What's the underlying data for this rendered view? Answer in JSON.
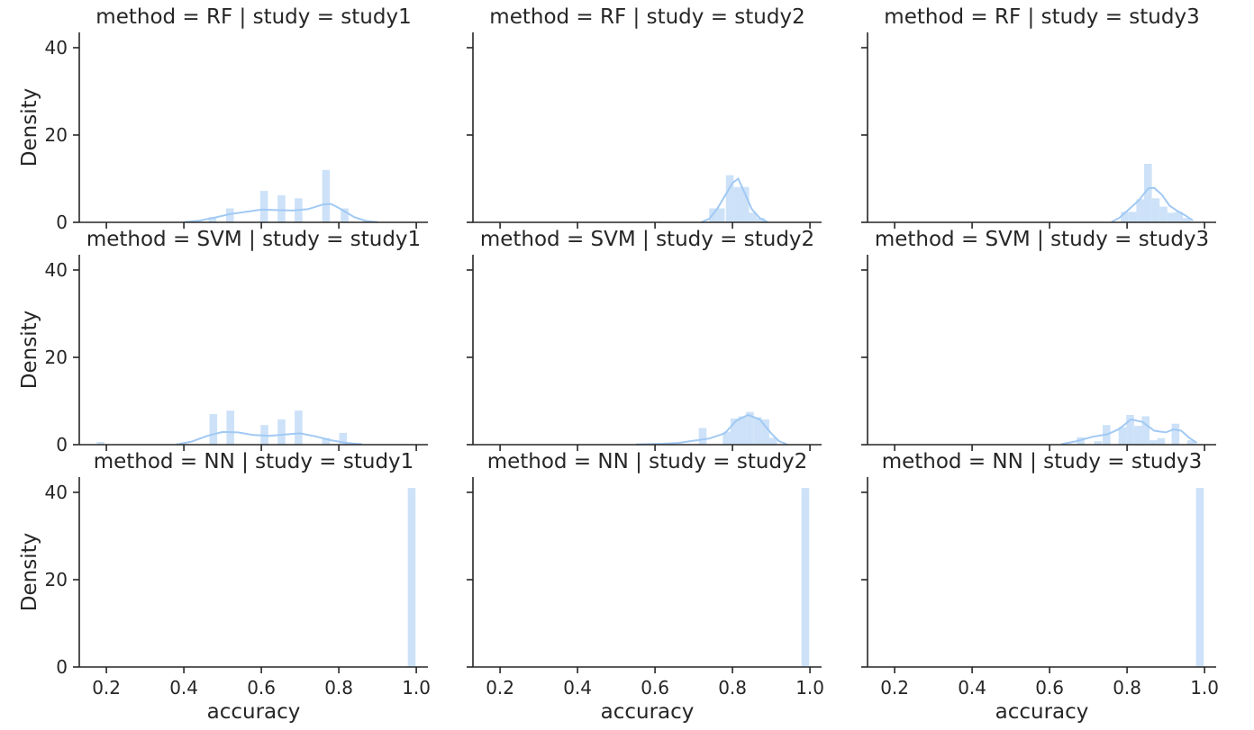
{
  "chart_data": {
    "type": "histogram-facet-grid",
    "row_var": "method",
    "col_var": "study",
    "xlabel": "accuracy",
    "ylabel": "Density",
    "xlim": [
      0.13,
      1.03
    ],
    "ylim": [
      0,
      43.5
    ],
    "x_ticks": [
      0.2,
      0.4,
      0.6,
      0.8,
      1.0
    ],
    "x_tick_labels": [
      "0.2",
      "0.4",
      "0.6",
      "0.8",
      "1.0"
    ],
    "y_ticks": [
      0,
      20,
      40
    ],
    "y_tick_labels": [
      "0",
      "20",
      "40"
    ],
    "bar_color": "#cde2f8",
    "kde_color": "#a1c9f4",
    "panels": [
      {
        "title": "method = RF | study = study1",
        "bars": [
          {
            "x0": 0.464,
            "x1": 0.484,
            "value": 1.2
          },
          {
            "x0": 0.509,
            "x1": 0.529,
            "value": 3.2
          },
          {
            "x0": 0.597,
            "x1": 0.617,
            "value": 7.2
          },
          {
            "x0": 0.642,
            "x1": 0.662,
            "value": 6.2
          },
          {
            "x0": 0.686,
            "x1": 0.706,
            "value": 5.5
          },
          {
            "x0": 0.757,
            "x1": 0.777,
            "value": 12.0
          },
          {
            "x0": 0.805,
            "x1": 0.825,
            "value": 3.2
          }
        ],
        "kde": [
          [
            0.4,
            0.05
          ],
          [
            0.44,
            0.4
          ],
          [
            0.48,
            1.1
          ],
          [
            0.52,
            1.9
          ],
          [
            0.56,
            2.4
          ],
          [
            0.6,
            2.9
          ],
          [
            0.64,
            2.8
          ],
          [
            0.68,
            2.7
          ],
          [
            0.72,
            3.0
          ],
          [
            0.76,
            4.1
          ],
          [
            0.78,
            4.2
          ],
          [
            0.8,
            3.3
          ],
          [
            0.84,
            1.2
          ],
          [
            0.87,
            0.3
          ],
          [
            0.9,
            0.05
          ]
        ]
      },
      {
        "title": "method = RF | study = study2",
        "bars": [
          {
            "x0": 0.74,
            "x1": 0.76,
            "value": 3.2
          },
          {
            "x0": 0.76,
            "x1": 0.78,
            "value": 3.2
          },
          {
            "x0": 0.783,
            "x1": 0.803,
            "value": 10.8
          },
          {
            "x0": 0.803,
            "x1": 0.823,
            "value": 8.1
          },
          {
            "x0": 0.823,
            "x1": 0.843,
            "value": 8.1
          },
          {
            "x0": 0.843,
            "x1": 0.863,
            "value": 2.2
          },
          {
            "x0": 0.863,
            "x1": 0.883,
            "value": 1.0
          }
        ],
        "kde": [
          [
            0.72,
            0.05
          ],
          [
            0.74,
            0.8
          ],
          [
            0.76,
            3.0
          ],
          [
            0.78,
            6.0
          ],
          [
            0.8,
            9.0
          ],
          [
            0.815,
            10.0
          ],
          [
            0.83,
            7.0
          ],
          [
            0.85,
            3.0
          ],
          [
            0.87,
            1.0
          ],
          [
            0.89,
            0.1
          ]
        ]
      },
      {
        "title": "method = RF | study = study3",
        "bars": [
          {
            "x0": 0.784,
            "x1": 0.804,
            "value": 2.4
          },
          {
            "x0": 0.804,
            "x1": 0.824,
            "value": 2.4
          },
          {
            "x0": 0.824,
            "x1": 0.844,
            "value": 5.3
          },
          {
            "x0": 0.844,
            "x1": 0.864,
            "value": 13.4
          },
          {
            "x0": 0.864,
            "x1": 0.884,
            "value": 5.5
          },
          {
            "x0": 0.884,
            "x1": 0.904,
            "value": 3.6
          },
          {
            "x0": 0.904,
            "x1": 0.924,
            "value": 2.2
          },
          {
            "x0": 0.924,
            "x1": 0.944,
            "value": 2.4
          },
          {
            "x0": 0.944,
            "x1": 0.964,
            "value": 1.0
          }
        ],
        "kde": [
          [
            0.76,
            0.1
          ],
          [
            0.78,
            1.0
          ],
          [
            0.8,
            2.6
          ],
          [
            0.83,
            5.0
          ],
          [
            0.855,
            7.8
          ],
          [
            0.87,
            7.9
          ],
          [
            0.89,
            6.3
          ],
          [
            0.91,
            3.8
          ],
          [
            0.93,
            2.6
          ],
          [
            0.95,
            1.6
          ],
          [
            0.97,
            0.4
          ]
        ]
      },
      {
        "title": "method = SVM | study = study1",
        "bars": [
          {
            "x0": 0.175,
            "x1": 0.195,
            "value": 0.6
          },
          {
            "x0": 0.466,
            "x1": 0.486,
            "value": 7.0
          },
          {
            "x0": 0.51,
            "x1": 0.53,
            "value": 7.8
          },
          {
            "x0": 0.598,
            "x1": 0.618,
            "value": 4.5
          },
          {
            "x0": 0.642,
            "x1": 0.662,
            "value": 5.8
          },
          {
            "x0": 0.686,
            "x1": 0.706,
            "value": 7.8
          },
          {
            "x0": 0.757,
            "x1": 0.777,
            "value": 1.5
          },
          {
            "x0": 0.801,
            "x1": 0.821,
            "value": 2.7
          }
        ],
        "kde": [
          [
            0.38,
            0.05
          ],
          [
            0.42,
            0.7
          ],
          [
            0.46,
            2.0
          ],
          [
            0.5,
            2.9
          ],
          [
            0.54,
            2.8
          ],
          [
            0.58,
            2.2
          ],
          [
            0.62,
            2.0
          ],
          [
            0.66,
            2.3
          ],
          [
            0.7,
            2.6
          ],
          [
            0.74,
            1.9
          ],
          [
            0.78,
            1.0
          ],
          [
            0.82,
            0.4
          ],
          [
            0.86,
            0.1
          ]
        ]
      },
      {
        "title": "method = SVM | study = study2",
        "bars": [
          {
            "x0": 0.713,
            "x1": 0.733,
            "value": 3.8
          },
          {
            "x0": 0.775,
            "x1": 0.795,
            "value": 3.0
          },
          {
            "x0": 0.795,
            "x1": 0.815,
            "value": 6.0
          },
          {
            "x0": 0.815,
            "x1": 0.835,
            "value": 6.5
          },
          {
            "x0": 0.835,
            "x1": 0.855,
            "value": 7.5
          },
          {
            "x0": 0.855,
            "x1": 0.875,
            "value": 6.3
          },
          {
            "x0": 0.875,
            "x1": 0.895,
            "value": 5.8
          },
          {
            "x0": 0.895,
            "x1": 0.915,
            "value": 1.6
          }
        ],
        "kde": [
          [
            0.55,
            0.05
          ],
          [
            0.62,
            0.2
          ],
          [
            0.66,
            0.4
          ],
          [
            0.7,
            0.9
          ],
          [
            0.74,
            1.4
          ],
          [
            0.78,
            2.6
          ],
          [
            0.81,
            5.5
          ],
          [
            0.84,
            6.8
          ],
          [
            0.87,
            5.8
          ],
          [
            0.9,
            2.6
          ],
          [
            0.92,
            0.8
          ],
          [
            0.94,
            0.1
          ]
        ]
      },
      {
        "title": "method = SVM | study = study3",
        "bars": [
          {
            "x0": 0.67,
            "x1": 0.69,
            "value": 1.7
          },
          {
            "x0": 0.715,
            "x1": 0.735,
            "value": 0.8
          },
          {
            "x0": 0.737,
            "x1": 0.757,
            "value": 4.5
          },
          {
            "x0": 0.778,
            "x1": 0.798,
            "value": 4.0
          },
          {
            "x0": 0.798,
            "x1": 0.818,
            "value": 6.8
          },
          {
            "x0": 0.818,
            "x1": 0.838,
            "value": 4.3
          },
          {
            "x0": 0.838,
            "x1": 0.858,
            "value": 6.5
          },
          {
            "x0": 0.858,
            "x1": 0.878,
            "value": 1.0
          },
          {
            "x0": 0.878,
            "x1": 0.898,
            "value": 1.5
          },
          {
            "x0": 0.915,
            "x1": 0.935,
            "value": 4.8
          },
          {
            "x0": 0.955,
            "x1": 0.975,
            "value": 1.0
          }
        ],
        "kde": [
          [
            0.63,
            0.1
          ],
          [
            0.67,
            0.8
          ],
          [
            0.71,
            1.8
          ],
          [
            0.75,
            2.4
          ],
          [
            0.78,
            3.6
          ],
          [
            0.81,
            5.8
          ],
          [
            0.84,
            5.2
          ],
          [
            0.87,
            3.2
          ],
          [
            0.9,
            2.8
          ],
          [
            0.92,
            3.5
          ],
          [
            0.94,
            3.2
          ],
          [
            0.96,
            1.6
          ],
          [
            0.98,
            0.4
          ]
        ]
      },
      {
        "title": "method = NN | study = study1",
        "bars": [
          {
            "x0": 0.978,
            "x1": 0.998,
            "value": 41.0
          }
        ],
        "kde": []
      },
      {
        "title": "method = NN | study = study2",
        "bars": [
          {
            "x0": 0.978,
            "x1": 0.998,
            "value": 41.0
          }
        ],
        "kde": []
      },
      {
        "title": "method = NN | study = study3",
        "bars": [
          {
            "x0": 0.978,
            "x1": 0.998,
            "value": 41.0
          }
        ],
        "kde": []
      }
    ]
  }
}
